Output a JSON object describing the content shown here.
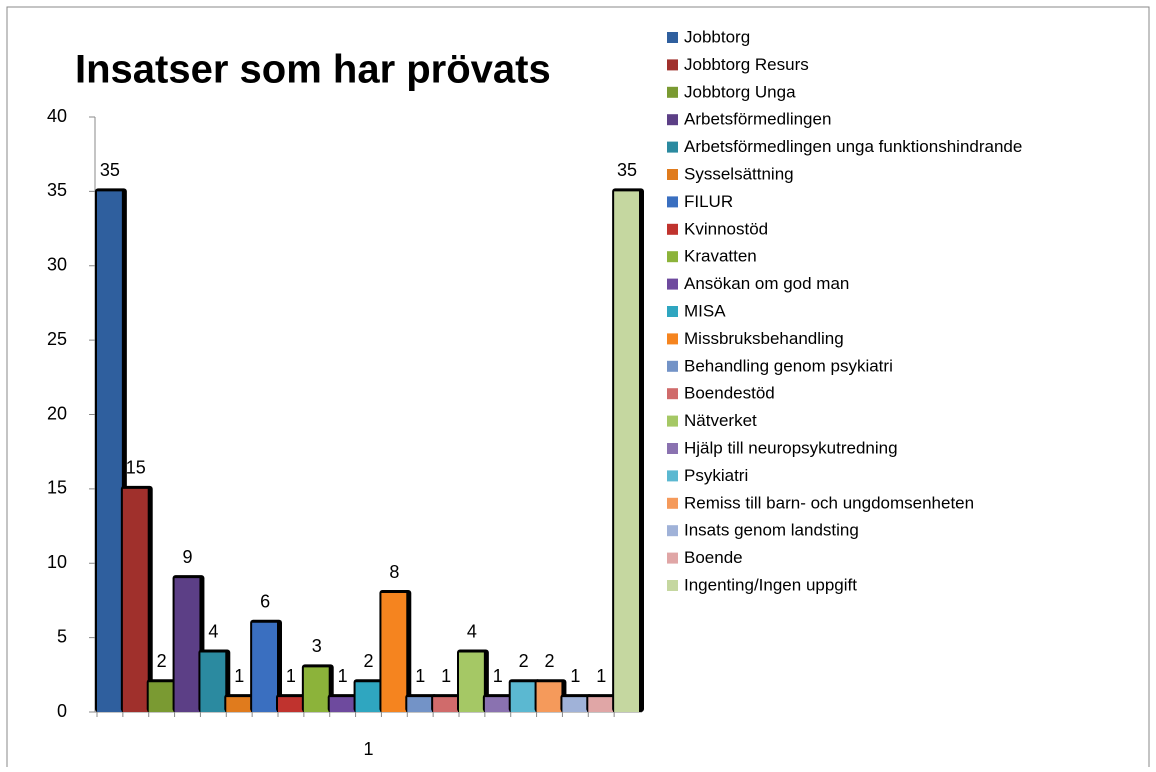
{
  "chart_data": {
    "type": "bar",
    "title": "Insatser som har prövats",
    "categories": [
      "1"
    ],
    "ylim": [
      0,
      40
    ],
    "yticks": [
      0,
      5,
      10,
      15,
      20,
      25,
      30,
      35,
      40
    ],
    "series": [
      {
        "name": "Jobbtorg",
        "color": "#2f5f9e",
        "values": [
          35
        ]
      },
      {
        "name": "Jobbtorg Resurs",
        "color": "#a0302c",
        "values": [
          15
        ]
      },
      {
        "name": "Jobbtorg Unga",
        "color": "#7a9a32",
        "values": [
          2
        ]
      },
      {
        "name": "Arbetsförmedlingen",
        "color": "#5c3f86",
        "values": [
          9
        ]
      },
      {
        "name": "Arbetsförmedlingen unga funktionshindrande",
        "color": "#2b8aa0",
        "values": [
          4
        ]
      },
      {
        "name": "Sysselsättning",
        "color": "#e07b1d",
        "values": [
          1
        ]
      },
      {
        "name": "FILUR",
        "color": "#3a6fc0",
        "values": [
          6
        ]
      },
      {
        "name": "Kvinnostöd",
        "color": "#c0332e",
        "values": [
          1
        ]
      },
      {
        "name": "Kravatten",
        "color": "#8cb33a",
        "values": [
          3
        ]
      },
      {
        "name": "Ansökan om god man",
        "color": "#6e4a9e",
        "values": [
          1
        ]
      },
      {
        "name": "MISA",
        "color": "#2fa6c0",
        "values": [
          2
        ]
      },
      {
        "name": "Missbruksbehandling",
        "color": "#f5841f",
        "values": [
          8
        ]
      },
      {
        "name": "Behandling genom psykiatri",
        "color": "#7393c7",
        "values": [
          1
        ]
      },
      {
        "name": "Boendestöd",
        "color": "#d06b6b",
        "values": [
          1
        ]
      },
      {
        "name": "Nätverket",
        "color": "#a5c865",
        "values": [
          4
        ]
      },
      {
        "name": "Hjälp till neuropsykutredning",
        "color": "#8a72b0",
        "values": [
          1
        ]
      },
      {
        "name": "Psykiatri",
        "color": "#5bb8d1",
        "values": [
          2
        ]
      },
      {
        "name": "Remiss till barn- och ungdomsenheten",
        "color": "#f59a5b",
        "values": [
          2
        ]
      },
      {
        "name": "Insats genom landsting",
        "color": "#a0b2d8",
        "values": [
          1
        ]
      },
      {
        "name": "Boende",
        "color": "#e0a6a6",
        "values": [
          1
        ]
      },
      {
        "name": "Ingenting/Ingen uppgift",
        "color": "#c5d7a0",
        "values": [
          35
        ]
      }
    ]
  }
}
